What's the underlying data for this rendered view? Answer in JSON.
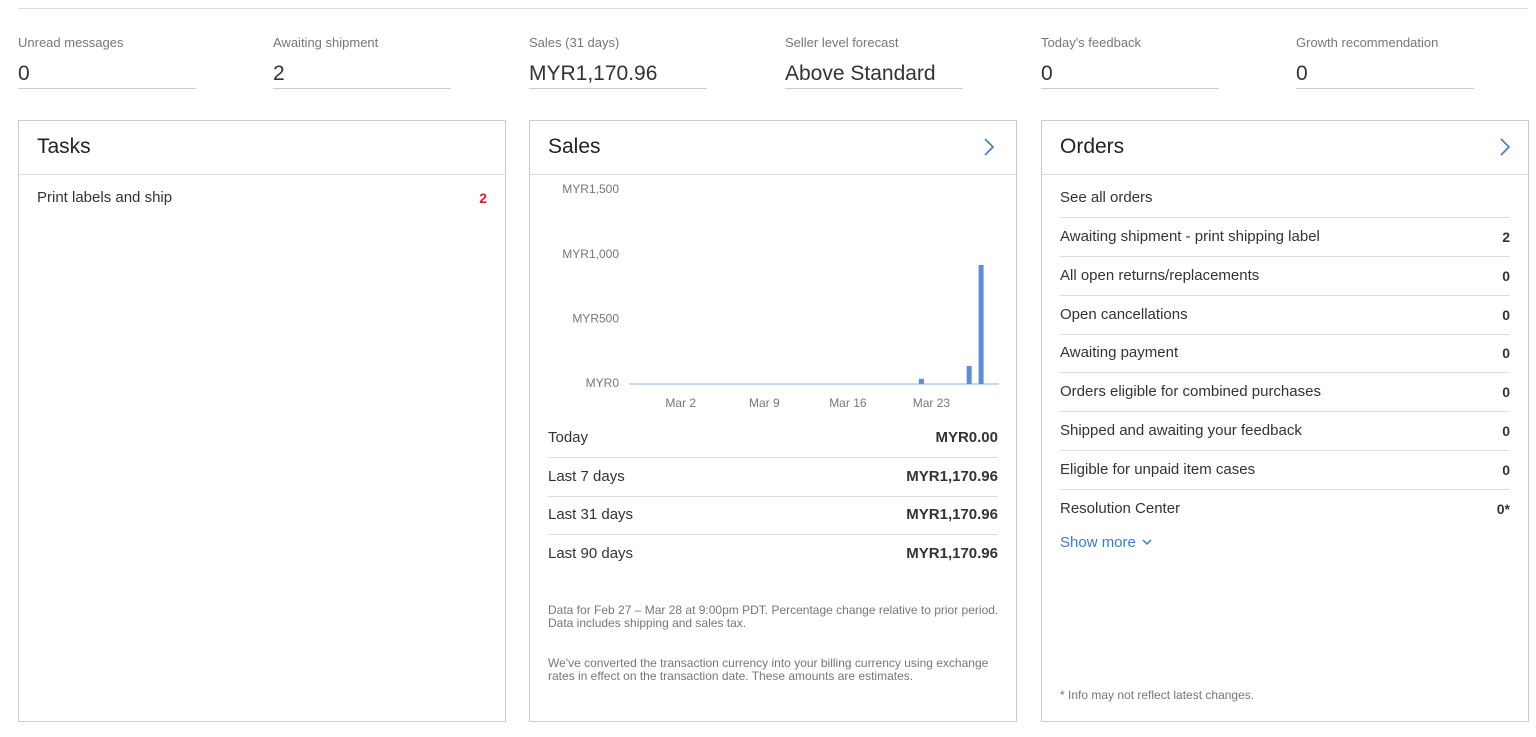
{
  "summary": [
    {
      "label": "Unread messages",
      "value": 0
    },
    {
      "label": "Awaiting shipment",
      "value": 2
    },
    {
      "label": "Sales (31 days)",
      "value": "MYR1,170.96"
    },
    {
      "label": "Seller level forecast",
      "value": "Above Standard"
    },
    {
      "label": "Today's feedback",
      "value": 0
    },
    {
      "label": "Growth recommendation",
      "value": 0
    }
  ],
  "tasks": {
    "title": "Tasks",
    "items": [
      {
        "label": "Print labels and ship",
        "count": 2
      }
    ]
  },
  "sales": {
    "title": "Sales",
    "periods": [
      {
        "label": "Today",
        "amount": "MYR0.00"
      },
      {
        "label": "Last 7 days",
        "amount": "MYR1,170.96"
      },
      {
        "label": "Last 31 days",
        "amount": "MYR1,170.96"
      },
      {
        "label": "Last 90 days",
        "amount": "MYR1,170.96"
      }
    ],
    "notes": [
      "Data for Feb 27 – Mar 28 at 9:00pm PDT. Percentage change relative to prior period. Data includes shipping and sales tax.",
      "We've converted the transaction currency into your billing currency using exchange rates in effect on the transaction date. These amounts are estimates."
    ]
  },
  "chart_data": {
    "type": "bar",
    "categories": [
      null,
      null,
      null,
      "Mar 2",
      null,
      null,
      null,
      null,
      null,
      null,
      "Mar 9",
      null,
      null,
      null,
      null,
      null,
      null,
      "Mar 16",
      null,
      null,
      null,
      null,
      null,
      null,
      "Mar 23",
      null,
      null,
      null,
      null,
      null,
      null
    ],
    "values": [
      0,
      0,
      0,
      0,
      0,
      0,
      0,
      0,
      0,
      0,
      0,
      0,
      0,
      0,
      0,
      0,
      0,
      0,
      0,
      0,
      0,
      0,
      0,
      0,
      40,
      0,
      0,
      0,
      140,
      920,
      0
    ],
    "color": "#5b8fd6",
    "ylim": [
      0,
      1500
    ],
    "yticks": [
      {
        "value": 0,
        "label": "MYR0"
      },
      {
        "value": 500,
        "label": "MYR500"
      },
      {
        "value": 1000,
        "label": "MYR1,000"
      },
      {
        "value": 1500,
        "label": "MYR1,500"
      }
    ]
  },
  "orders": {
    "title": "Orders",
    "link": "See all orders",
    "items": [
      {
        "label": "Awaiting shipment - print shipping label",
        "count": 2
      },
      {
        "label": "All open returns/replacements",
        "count": 0
      },
      {
        "label": "Open cancellations",
        "count": 0
      },
      {
        "label": "Awaiting payment",
        "count": 0
      },
      {
        "label": "Orders eligible for combined purchases",
        "count": 0
      },
      {
        "label": "Shipped and awaiting your feedback",
        "count": 0
      },
      {
        "label": "Eligible for unpaid item cases",
        "count": 0
      },
      {
        "label": "Resolution Center",
        "count": "0*"
      }
    ],
    "show_more": "Show more",
    "footnote": "* Info may not reflect latest changes."
  }
}
